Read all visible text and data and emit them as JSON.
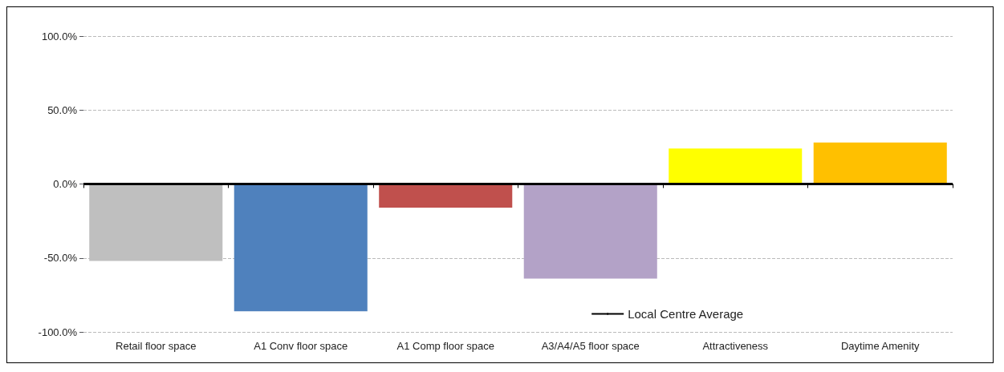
{
  "chart_data": {
    "type": "bar",
    "categories": [
      "Retail floor space",
      "A1 Conv floor space",
      "A1 Comp floor space",
      "A3/A4/A5 floor space",
      "Attractiveness",
      "Daytime Amenity"
    ],
    "values": [
      -52,
      -86,
      -16,
      -64,
      24,
      28
    ],
    "colors": [
      "#bfbfbf",
      "#4f81bd",
      "#c0504d",
      "#b3a2c7",
      "#ffff00",
      "#ffc000"
    ],
    "ylim": [
      -100,
      100
    ],
    "yticks": [
      {
        "value": -100,
        "label": "-100.0%"
      },
      {
        "value": -50,
        "label": "-50.0%"
      },
      {
        "value": 0,
        "label": "0.0%"
      },
      {
        "value": 50,
        "label": "50.0%"
      },
      {
        "value": 100,
        "label": "100.0%"
      }
    ],
    "grid": "y",
    "legend": "bottom right",
    "ref_lines": [
      {
        "axis": "y",
        "value": 0,
        "label": "Local Centre Average",
        "color": "#000000"
      }
    ]
  }
}
